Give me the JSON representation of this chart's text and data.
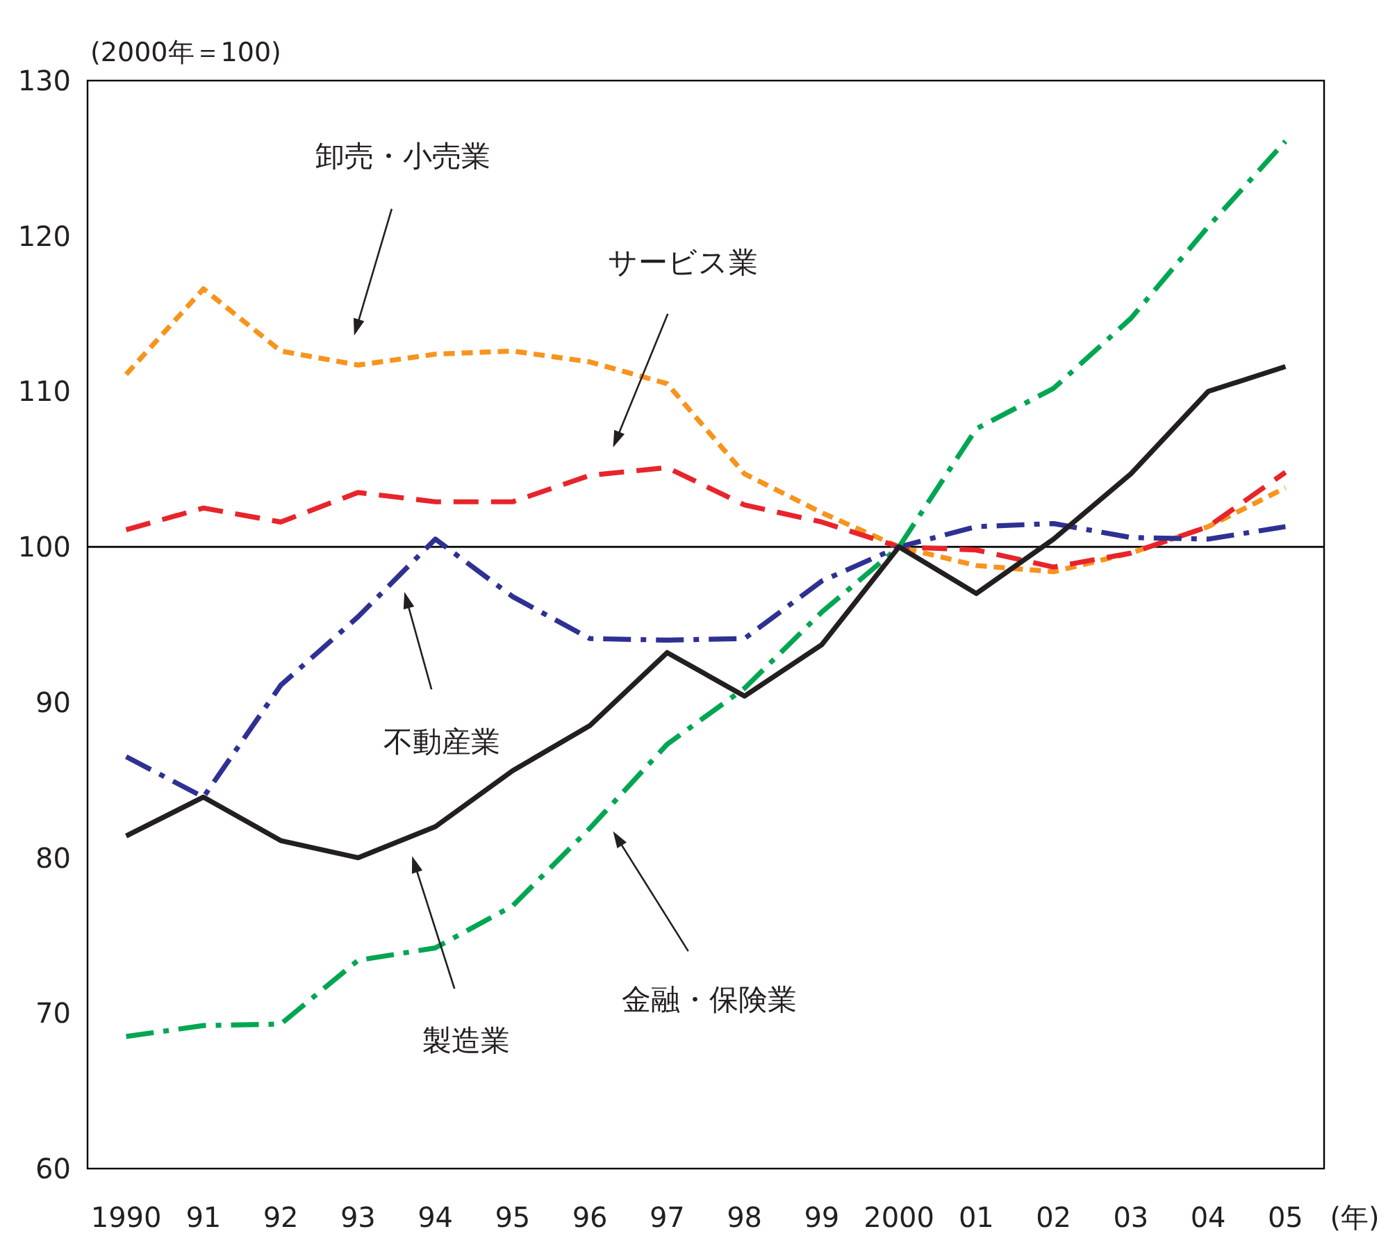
{
  "chart_data": {
    "type": "line",
    "ylabel": "(2000年＝100)",
    "xlabel": "(年)",
    "x": [
      1990,
      1991,
      1992,
      1993,
      1994,
      1995,
      1996,
      1997,
      1998,
      1999,
      2000,
      2001,
      2002,
      2003,
      2004,
      2005
    ],
    "xlim": [
      1989.5,
      2005.5
    ],
    "xticks": [
      1990,
      {
        "value": 1991,
        "label": "91"
      },
      {
        "value": 1992,
        "label": "92"
      },
      {
        "value": 1993,
        "label": "93"
      },
      {
        "value": 1994,
        "label": "94"
      },
      {
        "value": 1995,
        "label": "95"
      },
      {
        "value": 1996,
        "label": "96"
      },
      {
        "value": 1997,
        "label": "97"
      },
      {
        "value": 1998,
        "label": "98"
      },
      {
        "value": 1999,
        "label": "99"
      },
      2000,
      {
        "value": 2001,
        "label": "01"
      },
      {
        "value": 2002,
        "label": "02"
      },
      {
        "value": 2003,
        "label": "03"
      },
      {
        "value": 2004,
        "label": "04"
      },
      {
        "value": 2005,
        "label": "05"
      }
    ],
    "ylim": [
      60,
      130
    ],
    "yticks": [
      60,
      70,
      80,
      90,
      100,
      110,
      120,
      130
    ],
    "grid": false,
    "marker": "none",
    "ref_lines": [
      {
        "axis": "y",
        "value": 100,
        "color": "#000000"
      }
    ],
    "series": [
      {
        "color": "#f7941d",
        "line_style": "dotted",
        "values": [
          111.1,
          116.6,
          112.6,
          111.7,
          112.4,
          112.6,
          111.9,
          110.5,
          104.7,
          102.2,
          100,
          98.8,
          98.4,
          99.6,
          101.3,
          103.8
        ]
      },
      {
        "color": "#e8242b",
        "line_style": "dashed",
        "values": [
          101.1,
          102.5,
          101.6,
          103.5,
          102.9,
          102.9,
          104.6,
          105.1,
          102.7,
          101.6,
          100,
          99.8,
          98.7,
          99.6,
          101.3,
          104.8
        ]
      },
      {
        "color": "#2e3192",
        "line_style": "dashdot",
        "values": [
          86.5,
          83.9,
          91.1,
          95.5,
          100.5,
          96.8,
          94.1,
          94.0,
          94.1,
          97.8,
          100,
          101.3,
          101.5,
          100.6,
          100.5,
          101.3
        ]
      },
      {
        "color": "#00a651",
        "line_style": "dashdot",
        "values": [
          68.5,
          69.2,
          69.3,
          73.4,
          74.2,
          76.9,
          81.9,
          87.3,
          90.9,
          95.8,
          100,
          107.6,
          110.2,
          114.7,
          120.6,
          126.1
        ]
      },
      {
        "color": "#231f20",
        "line_style": "solid",
        "values": [
          81.4,
          83.9,
          81.1,
          80.0,
          82.0,
          85.6,
          88.5,
          93.2,
          90.4,
          93.7,
          100,
          97.0,
          100.5,
          104.7,
          110.0,
          111.6
        ]
      }
    ],
    "annotations": [
      "卸売・小売業",
      "サービス業",
      "不動産業",
      "製造業",
      "金融・保険業"
    ]
  }
}
